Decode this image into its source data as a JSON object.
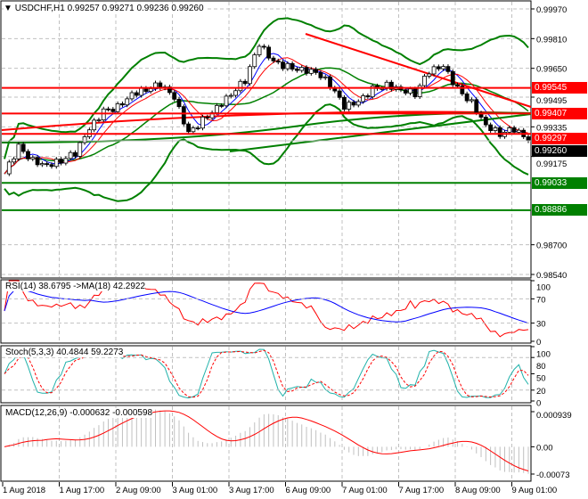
{
  "header": {
    "symbol": "USDCHF,H1",
    "open": "0.99257",
    "high": "0.99271",
    "low": "0.99236",
    "close": "0.99260",
    "menu_icon": "triangle-down-icon"
  },
  "price_axis": {
    "labels": [
      "0.99970",
      "0.99810",
      "0.99650",
      "0.99495",
      "0.99335",
      "0.99175",
      "0.98700",
      "0.98540"
    ],
    "range": [
      0.9854,
      0.9997
    ]
  },
  "levels": [
    {
      "price": "0.99545",
      "color": "#ff0000"
    },
    {
      "price": "0.99407",
      "color": "#ff0000"
    },
    {
      "price": "0.99297",
      "color": "#ff0000"
    },
    {
      "price": "0.99260",
      "color": "#000000"
    },
    {
      "price": "0.99033",
      "color": "#008000"
    },
    {
      "price": "0.98886",
      "color": "#008000"
    }
  ],
  "closes": [
    0.99082,
    0.99226,
    0.99154,
    0.9913,
    0.99154,
    0.99193,
    0.99322,
    0.99418,
    0.99442,
    0.99514,
    0.99538,
    0.99562,
    0.9949,
    0.99298,
    0.9937,
    0.99442,
    0.99514,
    0.99586,
    0.99778,
    0.99682,
    0.99658,
    0.99644,
    0.99634,
    0.99562,
    0.99442,
    0.99466,
    0.99538,
    0.99562,
    0.99538,
    0.99514,
    0.99634,
    0.99658,
    0.99538,
    0.99466,
    0.99346,
    0.99298,
    0.99322,
    0.9926
  ],
  "rsi": {
    "label": "RSI(14) 38.6795  ->MA(18) 42.2922",
    "levels": [
      "100",
      "70",
      "30",
      "0"
    ]
  },
  "stoch": {
    "label": "Stoch(5,3,3) 40.4844 59.2273",
    "levels": [
      "100",
      "80",
      "50",
      "20",
      "0"
    ]
  },
  "macd": {
    "label": "MACD(12,26,9) -0.000632 -0.000598",
    "levels": [
      "0.000939",
      "0.00",
      "-0.00073"
    ]
  },
  "time_axis": [
    "1 Aug 2018",
    "1 Aug 17:00",
    "2 Aug 09:00",
    "3 Aug 01:00",
    "3 Aug 17:00",
    "6 Aug 09:00",
    "7 Aug 01:00",
    "7 Aug 17:00",
    "8 Aug 09:00",
    "9 Aug 01:00"
  ],
  "colors": {
    "bands": "#008000",
    "trend": "#ff0000",
    "rsi": "#ff0000",
    "rsi_ma": "#0000ff",
    "stoch_main": "#20b2aa",
    "stoch_signal": "#ff0000",
    "macd_hist": "#c0c0c0",
    "macd_signal": "#ff0000"
  }
}
